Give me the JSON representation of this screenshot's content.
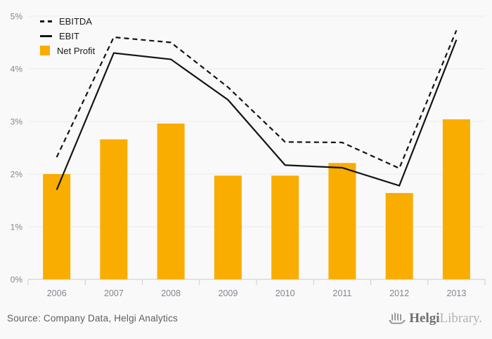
{
  "chart_data": {
    "type": "combo",
    "categories": [
      "2006",
      "2007",
      "2008",
      "2009",
      "2010",
      "2011",
      "2012",
      "2013"
    ],
    "series": [
      {
        "name": "EBITDA",
        "type": "line",
        "style": "dashed",
        "color": "#141414",
        "values": [
          2.32,
          4.6,
          4.5,
          3.65,
          2.61,
          2.6,
          2.11,
          4.73
        ]
      },
      {
        "name": "EBIT",
        "type": "line",
        "style": "solid",
        "color": "#141414",
        "values": [
          1.7,
          4.3,
          4.18,
          3.41,
          2.17,
          2.12,
          1.78,
          4.55
        ]
      },
      {
        "name": "Net Profit",
        "type": "bar",
        "color": "#f9ad00",
        "values": [
          2.0,
          2.66,
          2.96,
          1.97,
          1.97,
          2.21,
          1.64,
          3.04
        ]
      }
    ],
    "title": "",
    "xlabel": "",
    "ylabel": "",
    "ylim": [
      0,
      5
    ],
    "yticks": [
      "0%",
      "1%",
      "2%",
      "3%",
      "4%",
      "5%"
    ],
    "grid": true,
    "legend_position": "top-left",
    "background": "#f9f9f9",
    "gridline_color": "#ebebeb",
    "axis_color": "#c9ccd3",
    "tick_label_color": "#82868f"
  },
  "footer": {
    "source": "Source: Company Data, Helgi Analytics",
    "logo": {
      "part1": "Helgi",
      "part2": "Library."
    }
  }
}
